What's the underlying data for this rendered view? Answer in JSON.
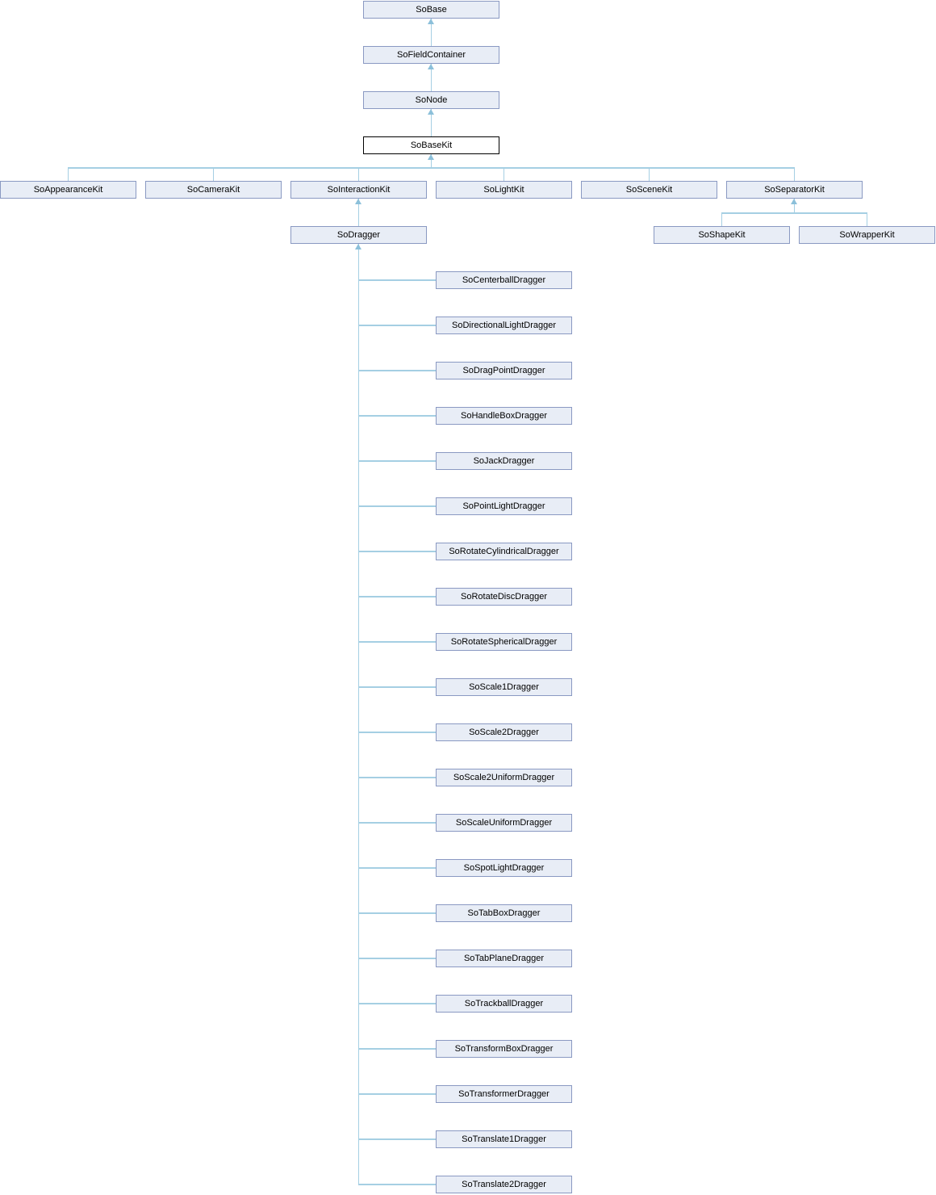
{
  "diagram_type": "class-inheritance-graph",
  "selected_class": "SoBaseKit",
  "chain": [
    "SoBase",
    "SoFieldContainer",
    "SoNode",
    "SoBaseKit"
  ],
  "basekit_children": [
    "SoAppearanceKit",
    "SoCameraKit",
    "SoInteractionKit",
    "SoLightKit",
    "SoSceneKit",
    "SoSeparatorKit"
  ],
  "interactionkit_child": "SoDragger",
  "separatorkit_children": [
    "SoShapeKit",
    "SoWrapperKit"
  ],
  "dragger_children": [
    "SoCenterballDragger",
    "SoDirectionalLightDragger",
    "SoDragPointDragger",
    "SoHandleBoxDragger",
    "SoJackDragger",
    "SoPointLightDragger",
    "SoRotateCylindricalDragger",
    "SoRotateDiscDragger",
    "SoRotateSphericalDragger",
    "SoScale1Dragger",
    "SoScale2Dragger",
    "SoScale2UniformDragger",
    "SoScaleUniformDragger",
    "SoSpotLightDragger",
    "SoTabBoxDragger",
    "SoTabPlaneDragger",
    "SoTrackballDragger",
    "SoTransformBoxDragger",
    "SoTransformerDragger",
    "SoTranslate1Dragger",
    "SoTranslate2Dragger"
  ],
  "colors": {
    "node_fill": "#e8edf6",
    "node_border": "#8a99c2",
    "selected_fill": "#ffffff",
    "selected_border": "#000000",
    "edge": "#a5cfe3",
    "edge_arrow": "#8cc0da",
    "text": "#000000",
    "background": "#ffffff"
  }
}
